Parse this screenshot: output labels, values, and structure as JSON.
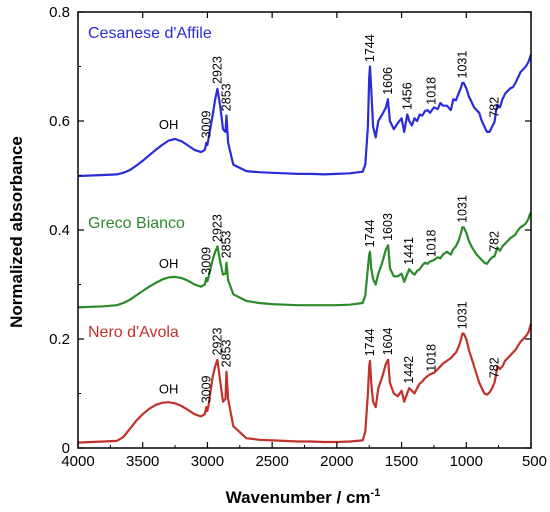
{
  "chart_data": {
    "type": "line",
    "xlabel": "Wavenumber / cm",
    "xlabel_sup": "-1",
    "ylabel": "Normalized absorbance",
    "xlim": [
      4000,
      500
    ],
    "ylim": [
      0,
      0.8
    ],
    "x_reversed": true,
    "x_ticks": [
      4000,
      3500,
      3000,
      2500,
      2000,
      1500,
      1000,
      500
    ],
    "x_tick_labels": [
      "4000",
      "3500",
      "3000",
      "2500",
      "2000",
      "1500",
      "1000",
      "500"
    ],
    "y_ticks": [
      0,
      0.2,
      0.4,
      0.6,
      0.8
    ],
    "y_tick_labels": [
      "0",
      "0.2",
      "0.4",
      "0.6",
      "0.8"
    ],
    "grid": false,
    "legend": "inline-labels",
    "series": [
      {
        "name": "Cesanese d'Affile",
        "color": "#2b2bd9",
        "x": [
          4000,
          3900,
          3800,
          3700,
          3650,
          3600,
          3550,
          3500,
          3450,
          3400,
          3350,
          3300,
          3250,
          3200,
          3150,
          3100,
          3050,
          3020,
          3009,
          3000,
          2990,
          2960,
          2940,
          2923,
          2900,
          2880,
          2860,
          2853,
          2840,
          2800,
          2700,
          2600,
          2500,
          2400,
          2300,
          2200,
          2100,
          2000,
          1900,
          1800,
          1780,
          1760,
          1750,
          1744,
          1735,
          1720,
          1700,
          1680,
          1650,
          1620,
          1606,
          1590,
          1560,
          1530,
          1500,
          1480,
          1456,
          1440,
          1420,
          1400,
          1380,
          1360,
          1340,
          1320,
          1300,
          1280,
          1250,
          1220,
          1200,
          1180,
          1150,
          1120,
          1100,
          1080,
          1060,
          1040,
          1031,
          1020,
          1000,
          980,
          960,
          940,
          920,
          900,
          880,
          860,
          840,
          820,
          800,
          782,
          770,
          760,
          740,
          720,
          700,
          680,
          660,
          640,
          620,
          600,
          580,
          560,
          540,
          520,
          510,
          500
        ],
        "y": [
          0.499,
          0.5,
          0.501,
          0.502,
          0.505,
          0.51,
          0.518,
          0.527,
          0.537,
          0.547,
          0.556,
          0.564,
          0.567,
          0.563,
          0.555,
          0.547,
          0.543,
          0.547,
          0.56,
          0.556,
          0.57,
          0.61,
          0.64,
          0.659,
          0.625,
          0.585,
          0.58,
          0.61,
          0.56,
          0.52,
          0.508,
          0.506,
          0.505,
          0.504,
          0.503,
          0.503,
          0.502,
          0.503,
          0.504,
          0.507,
          0.52,
          0.59,
          0.68,
          0.7,
          0.66,
          0.59,
          0.57,
          0.6,
          0.612,
          0.625,
          0.64,
          0.6,
          0.585,
          0.596,
          0.605,
          0.58,
          0.612,
          0.6,
          0.592,
          0.605,
          0.6,
          0.612,
          0.61,
          0.618,
          0.62,
          0.615,
          0.625,
          0.622,
          0.633,
          0.628,
          0.628,
          0.62,
          0.64,
          0.638,
          0.65,
          0.662,
          0.67,
          0.67,
          0.66,
          0.645,
          0.635,
          0.625,
          0.62,
          0.615,
          0.6,
          0.59,
          0.58,
          0.58,
          0.59,
          0.598,
          0.62,
          0.63,
          0.625,
          0.64,
          0.65,
          0.655,
          0.66,
          0.662,
          0.67,
          0.68,
          0.69,
          0.695,
          0.7,
          0.708,
          0.715,
          0.722
        ]
      },
      {
        "name": "Greco Bianco",
        "color": "#2a8a2a",
        "x": [
          4000,
          3900,
          3800,
          3700,
          3650,
          3600,
          3550,
          3500,
          3450,
          3400,
          3350,
          3300,
          3250,
          3200,
          3150,
          3100,
          3050,
          3020,
          3009,
          3000,
          2990,
          2960,
          2940,
          2923,
          2900,
          2880,
          2860,
          2853,
          2840,
          2800,
          2700,
          2600,
          2500,
          2400,
          2300,
          2200,
          2100,
          2000,
          1900,
          1800,
          1780,
          1760,
          1750,
          1744,
          1735,
          1720,
          1700,
          1680,
          1650,
          1620,
          1603,
          1590,
          1560,
          1530,
          1500,
          1480,
          1441,
          1420,
          1400,
          1380,
          1360,
          1340,
          1320,
          1300,
          1280,
          1250,
          1220,
          1200,
          1180,
          1150,
          1120,
          1100,
          1080,
          1060,
          1040,
          1031,
          1020,
          1000,
          980,
          960,
          940,
          920,
          900,
          880,
          860,
          840,
          820,
          800,
          782,
          770,
          760,
          740,
          720,
          700,
          680,
          660,
          640,
          620,
          600,
          580,
          560,
          540,
          520,
          510,
          500
        ],
        "y": [
          0.258,
          0.259,
          0.26,
          0.262,
          0.266,
          0.272,
          0.28,
          0.288,
          0.296,
          0.303,
          0.309,
          0.313,
          0.314,
          0.312,
          0.307,
          0.3,
          0.296,
          0.3,
          0.312,
          0.306,
          0.315,
          0.345,
          0.36,
          0.37,
          0.34,
          0.318,
          0.32,
          0.34,
          0.308,
          0.282,
          0.27,
          0.266,
          0.264,
          0.263,
          0.262,
          0.262,
          0.262,
          0.262,
          0.263,
          0.266,
          0.28,
          0.33,
          0.355,
          0.36,
          0.33,
          0.31,
          0.3,
          0.32,
          0.34,
          0.365,
          0.372,
          0.33,
          0.315,
          0.315,
          0.32,
          0.305,
          0.328,
          0.322,
          0.318,
          0.325,
          0.328,
          0.335,
          0.34,
          0.338,
          0.342,
          0.345,
          0.35,
          0.348,
          0.355,
          0.36,
          0.355,
          0.365,
          0.37,
          0.38,
          0.395,
          0.405,
          0.405,
          0.395,
          0.38,
          0.37,
          0.362,
          0.355,
          0.35,
          0.345,
          0.34,
          0.338,
          0.345,
          0.35,
          0.352,
          0.36,
          0.368,
          0.362,
          0.37,
          0.375,
          0.38,
          0.385,
          0.388,
          0.392,
          0.4,
          0.405,
          0.408,
          0.412,
          0.42,
          0.428,
          0.432
        ]
      },
      {
        "name": "Nero d'Avola",
        "color": "#c0322a",
        "x": [
          4000,
          3900,
          3800,
          3700,
          3650,
          3600,
          3550,
          3500,
          3450,
          3400,
          3350,
          3300,
          3250,
          3200,
          3150,
          3100,
          3050,
          3020,
          3009,
          3000,
          2990,
          2960,
          2940,
          2923,
          2900,
          2880,
          2860,
          2853,
          2840,
          2800,
          2700,
          2600,
          2500,
          2400,
          2300,
          2200,
          2100,
          2000,
          1900,
          1800,
          1780,
          1760,
          1750,
          1744,
          1735,
          1720,
          1700,
          1680,
          1650,
          1620,
          1604,
          1590,
          1560,
          1530,
          1500,
          1480,
          1442,
          1420,
          1400,
          1380,
          1360,
          1340,
          1320,
          1300,
          1280,
          1250,
          1220,
          1200,
          1180,
          1150,
          1120,
          1100,
          1080,
          1060,
          1040,
          1031,
          1020,
          1000,
          980,
          960,
          940,
          920,
          900,
          880,
          860,
          840,
          820,
          800,
          782,
          770,
          760,
          740,
          720,
          700,
          680,
          660,
          640,
          620,
          600,
          580,
          560,
          540,
          520,
          510,
          500
        ],
        "y": [
          0.01,
          0.011,
          0.012,
          0.013,
          0.02,
          0.035,
          0.05,
          0.062,
          0.072,
          0.079,
          0.083,
          0.084,
          0.082,
          0.077,
          0.07,
          0.062,
          0.058,
          0.062,
          0.075,
          0.068,
          0.08,
          0.13,
          0.15,
          0.162,
          0.12,
          0.085,
          0.09,
          0.14,
          0.09,
          0.04,
          0.018,
          0.015,
          0.014,
          0.013,
          0.012,
          0.012,
          0.011,
          0.011,
          0.012,
          0.014,
          0.03,
          0.1,
          0.15,
          0.16,
          0.12,
          0.085,
          0.075,
          0.11,
          0.13,
          0.155,
          0.162,
          0.12,
          0.1,
          0.095,
          0.105,
          0.085,
          0.11,
          0.105,
          0.1,
          0.11,
          0.118,
          0.122,
          0.128,
          0.132,
          0.135,
          0.138,
          0.145,
          0.15,
          0.155,
          0.16,
          0.165,
          0.17,
          0.175,
          0.185,
          0.2,
          0.21,
          0.21,
          0.2,
          0.18,
          0.165,
          0.15,
          0.135,
          0.12,
          0.11,
          0.1,
          0.098,
          0.102,
          0.11,
          0.12,
          0.135,
          0.15,
          0.145,
          0.15,
          0.16,
          0.165,
          0.17,
          0.175,
          0.18,
          0.188,
          0.195,
          0.2,
          0.205,
          0.212,
          0.22,
          0.228
        ]
      }
    ],
    "annotations": [
      {
        "series": 0,
        "labels": [
          {
            "text": "OH",
            "x": 3300,
            "y": 0.585,
            "rotate": false
          },
          {
            "text": "3009",
            "x": 3009,
            "y": 0.568,
            "rotate": true
          },
          {
            "text": "2923",
            "x": 2923,
            "y": 0.668,
            "rotate": true
          },
          {
            "text": "2853",
            "x": 2853,
            "y": 0.618,
            "rotate": true
          },
          {
            "text": "1744",
            "x": 1744,
            "y": 0.708,
            "rotate": true
          },
          {
            "text": "1606",
            "x": 1606,
            "y": 0.648,
            "rotate": true
          },
          {
            "text": "1456",
            "x": 1456,
            "y": 0.62,
            "rotate": true
          },
          {
            "text": "1018",
            "x": 1270,
            "y": 0.63,
            "rotate": true
          },
          {
            "text": "1031",
            "x": 1031,
            "y": 0.678,
            "rotate": true
          },
          {
            "text": "782",
            "x": 782,
            "y": 0.606,
            "rotate": true
          }
        ]
      },
      {
        "series": 1,
        "labels": [
          {
            "text": "OH",
            "x": 3300,
            "y": 0.33,
            "rotate": false
          },
          {
            "text": "3009",
            "x": 3009,
            "y": 0.318,
            "rotate": true
          },
          {
            "text": "2923",
            "x": 2923,
            "y": 0.378,
            "rotate": true
          },
          {
            "text": "2853",
            "x": 2853,
            "y": 0.348,
            "rotate": true
          },
          {
            "text": "1744",
            "x": 1744,
            "y": 0.368,
            "rotate": true
          },
          {
            "text": "1603",
            "x": 1603,
            "y": 0.38,
            "rotate": true
          },
          {
            "text": "1441",
            "x": 1441,
            "y": 0.336,
            "rotate": true
          },
          {
            "text": "1018",
            "x": 1270,
            "y": 0.35,
            "rotate": true
          },
          {
            "text": "1031",
            "x": 1031,
            "y": 0.413,
            "rotate": true
          },
          {
            "text": "782",
            "x": 782,
            "y": 0.36,
            "rotate": true
          }
        ]
      },
      {
        "series": 2,
        "labels": [
          {
            "text": "OH",
            "x": 3300,
            "y": 0.1,
            "rotate": false
          },
          {
            "text": "3009",
            "x": 3009,
            "y": 0.082,
            "rotate": true
          },
          {
            "text": "2923",
            "x": 2923,
            "y": 0.17,
            "rotate": true
          },
          {
            "text": "2853",
            "x": 2853,
            "y": 0.148,
            "rotate": true
          },
          {
            "text": "1744",
            "x": 1744,
            "y": 0.168,
            "rotate": true
          },
          {
            "text": "1604",
            "x": 1604,
            "y": 0.17,
            "rotate": true
          },
          {
            "text": "1442",
            "x": 1442,
            "y": 0.118,
            "rotate": true
          },
          {
            "text": "1018",
            "x": 1270,
            "y": 0.14,
            "rotate": true
          },
          {
            "text": "1031",
            "x": 1031,
            "y": 0.218,
            "rotate": true
          },
          {
            "text": "782",
            "x": 782,
            "y": 0.128,
            "rotate": true
          }
        ]
      }
    ]
  }
}
